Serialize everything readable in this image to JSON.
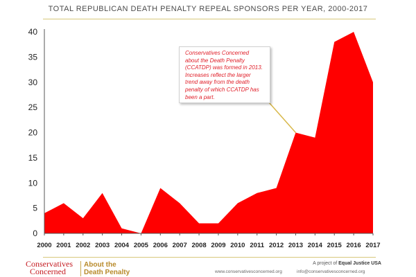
{
  "chart_data": {
    "type": "area",
    "title": "TOTAL REPUBLICAN DEATH PENALTY REPEAL SPONSORS PER YEAR, 2000-2017",
    "xlabel": "",
    "ylabel": "",
    "x": [
      "2000",
      "2001",
      "2002",
      "2003",
      "2004",
      "2005",
      "2006",
      "2007",
      "2008",
      "2009",
      "2010",
      "2011",
      "2012",
      "2013",
      "2014",
      "2015",
      "2016",
      "2017"
    ],
    "series": [
      {
        "values": [
          4,
          6,
          3,
          8,
          1,
          0,
          9,
          6,
          2,
          2,
          6,
          8,
          9,
          20,
          19,
          38,
          40,
          30
        ]
      }
    ],
    "ylim": [
      0,
      40
    ],
    "yticks": [
      "0",
      "5",
      "10",
      "15",
      "20",
      "25",
      "30",
      "35",
      "40"
    ],
    "grid": false,
    "fill_color": "#ff0000",
    "annotation": {
      "text": "Conservatives Concerned about the Death Penalty (CCATDP) was formed in 2013. Increases reflect the larger trend away from the death penalty of which CCATDP has been a part.",
      "points_to": "2013",
      "text_color": "#e0202a"
    }
  },
  "footer": {
    "logo_line1": "Conservatives",
    "logo_line2": "Concerned",
    "logo_adp_line1": "About the",
    "logo_adp_line2": "Death Penalty",
    "project_prefix": "A project of ",
    "project_name": "Equal Justice USA",
    "website": "www.conservativesconcerned.org",
    "email": "info@conservativesconcerned.org"
  }
}
